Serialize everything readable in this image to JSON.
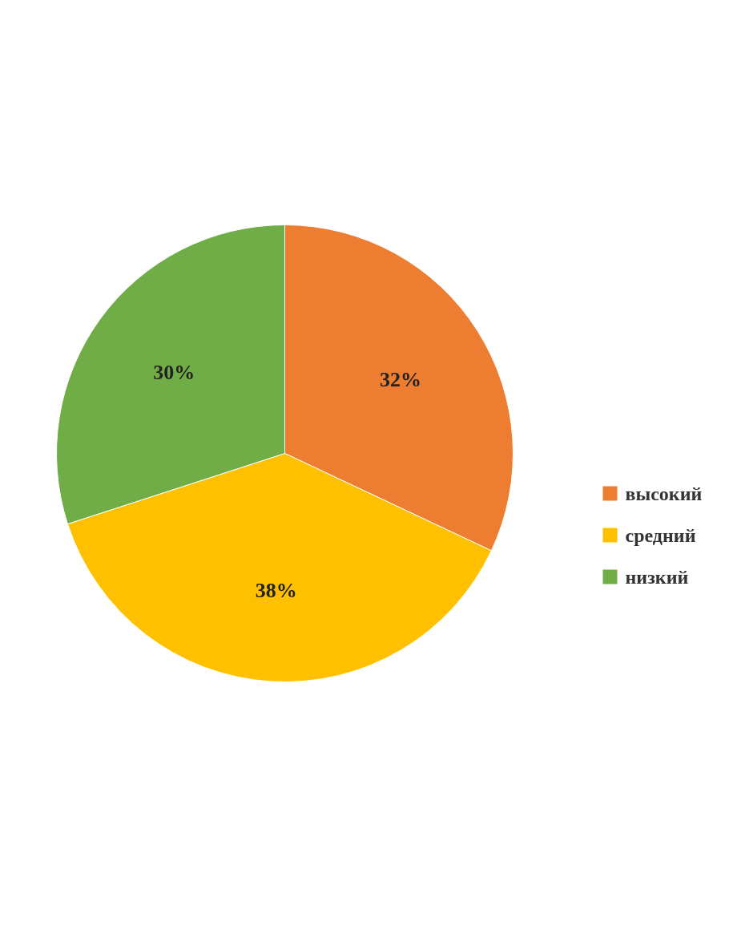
{
  "chart_data": {
    "type": "pie",
    "categories": [
      "высокий",
      "средний",
      "низкий"
    ],
    "values": [
      32,
      38,
      30
    ],
    "colors": [
      "#ed7d31",
      "#ffc000",
      "#70ad47"
    ],
    "value_labels": [
      "32%",
      "38%",
      "30%"
    ],
    "legend": "right"
  }
}
